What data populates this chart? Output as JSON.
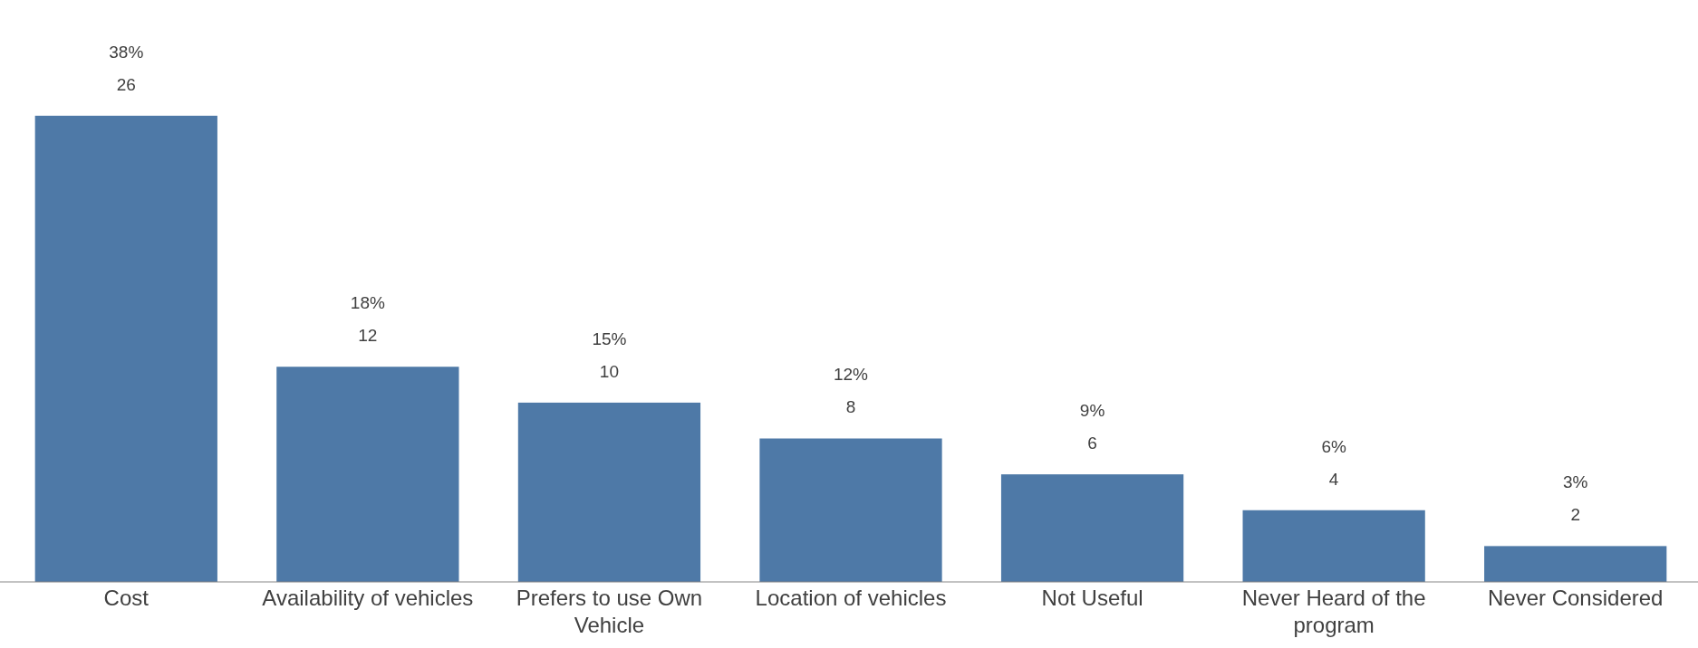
{
  "chart_data": {
    "type": "bar",
    "categories": [
      "Cost",
      "Availability of vehicles",
      "Prefers to use Own Vehicle",
      "Location of vehicles",
      "Not Useful",
      "Never Heard of the program",
      "Never Considered"
    ],
    "values": [
      26,
      12,
      10,
      8,
      6,
      4,
      2
    ],
    "color": "#4e79a7",
    "data_labels": true,
    "annotations": [
      "38%",
      "18%",
      "15%",
      "12%",
      "9%",
      "6%",
      "3%"
    ]
  }
}
